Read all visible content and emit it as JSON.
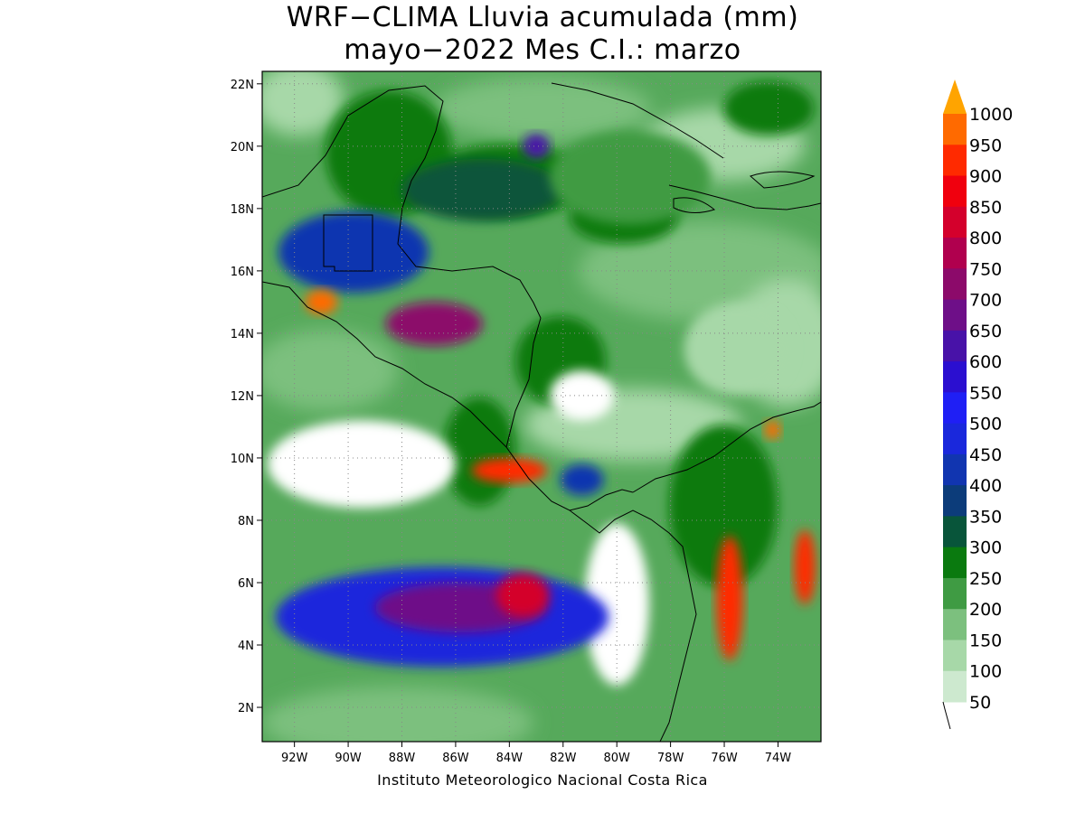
{
  "title": {
    "line1": "WRF−CLIMA Lluvia acumulada (mm)",
    "line2": "mayo−2022 Mes C.I.: marzo"
  },
  "credit": "Instituto Meteorologico Nacional Costa Rica",
  "axes": {
    "lon_ticks": [
      "92W",
      "90W",
      "88W",
      "86W",
      "84W",
      "82W",
      "80W",
      "78W",
      "76W",
      "74W"
    ],
    "lat_ticks": [
      "22N",
      "20N",
      "18N",
      "16N",
      "14N",
      "12N",
      "10N",
      "8N",
      "6N",
      "4N",
      "2N"
    ],
    "lon_range": [
      -93.2,
      -72.4
    ],
    "lat_range": [
      0.9,
      22.4
    ],
    "grid": "dotted"
  },
  "colorbar": {
    "levels": [
      "50",
      "100",
      "150",
      "200",
      "250",
      "300",
      "350",
      "400",
      "450",
      "500",
      "550",
      "600",
      "650",
      "700",
      "750",
      "800",
      "850",
      "900",
      "950",
      "1000"
    ],
    "colors": [
      "#cde9cf",
      "#a7d8a8",
      "#7cc07e",
      "#3f9b43",
      "#0a7a0f",
      "#08553a",
      "#0c3c7a",
      "#1135b0",
      "#1a28dc",
      "#1f1ff5",
      "#2b0fd0",
      "#4812a8",
      "#6e0f88",
      "#8c0a6a",
      "#b0004e",
      "#d4002c",
      "#f0000e",
      "#ff2a00",
      "#ff6a00",
      "#ff9900"
    ],
    "top_arrow_color": "#ffa400"
  },
  "chart_data": {
    "type": "heatmap",
    "title": "WRF−CLIMA Lluvia acumulada (mm)",
    "subtitle": "mayo−2022 Mes C.I.: marzo",
    "variable": "Lluvia acumulada",
    "units": "mm",
    "contour_levels": [
      50,
      100,
      150,
      200,
      250,
      300,
      350,
      400,
      450,
      500,
      550,
      600,
      650,
      700,
      750,
      800,
      850,
      900,
      950,
      1000
    ],
    "x_range": [
      -93.2,
      -72.4
    ],
    "y_range": [
      0.9,
      22.4
    ],
    "rain_regions": [
      {
        "lon": -80.0,
        "lat": 5.3,
        "rlon": 1.2,
        "rlat": 2.6,
        "value": 0
      },
      {
        "lon": -89.5,
        "lat": 9.8,
        "rlon": 3.5,
        "rlat": 1.4,
        "value": 0
      },
      {
        "lon": -81.3,
        "lat": 12.0,
        "rlon": 1.2,
        "rlat": 0.8,
        "value": 20
      },
      {
        "lon": -86.5,
        "lat": 4.9,
        "rlon": 6.2,
        "rlat": 1.6,
        "value": 470
      },
      {
        "lon": -85.8,
        "lat": 5.2,
        "rlon": 3.2,
        "rlat": 0.8,
        "value": 680
      },
      {
        "lon": -83.5,
        "lat": 5.6,
        "rlon": 1.0,
        "rlat": 0.7,
        "value": 820
      },
      {
        "lon": -89.8,
        "lat": 16.6,
        "rlon": 2.8,
        "rlat": 1.3,
        "value": 420
      },
      {
        "lon": -86.8,
        "lat": 14.3,
        "rlon": 1.8,
        "rlat": 0.7,
        "value": 720
      },
      {
        "lon": -91.0,
        "lat": 15.0,
        "rlon": 0.6,
        "rlat": 0.4,
        "value": 960
      },
      {
        "lon": -84.0,
        "lat": 9.6,
        "rlon": 1.4,
        "rlat": 0.4,
        "value": 920
      },
      {
        "lon": -81.3,
        "lat": 9.3,
        "rlon": 0.8,
        "rlat": 0.5,
        "value": 420
      },
      {
        "lon": -75.8,
        "lat": 5.5,
        "rlon": 0.5,
        "rlat": 2.0,
        "value": 940
      },
      {
        "lon": -73.0,
        "lat": 6.5,
        "rlon": 0.4,
        "rlat": 1.2,
        "value": 900
      },
      {
        "lon": -74.2,
        "lat": 10.9,
        "rlon": 0.3,
        "rlat": 0.3,
        "value": 960
      },
      {
        "lon": -83.0,
        "lat": 20.0,
        "rlon": 0.5,
        "rlat": 0.4,
        "value": 600
      },
      {
        "lon": -85.0,
        "lat": 18.6,
        "rlon": 3.0,
        "rlat": 1.0,
        "value": 320
      },
      {
        "lon": -79.5,
        "lat": 19.0,
        "rlon": 3.0,
        "rlat": 1.5,
        "value": 230
      },
      {
        "lon": -75.5,
        "lat": 13.5,
        "rlon": 2.0,
        "rlat": 1.5,
        "value": 100
      }
    ]
  }
}
